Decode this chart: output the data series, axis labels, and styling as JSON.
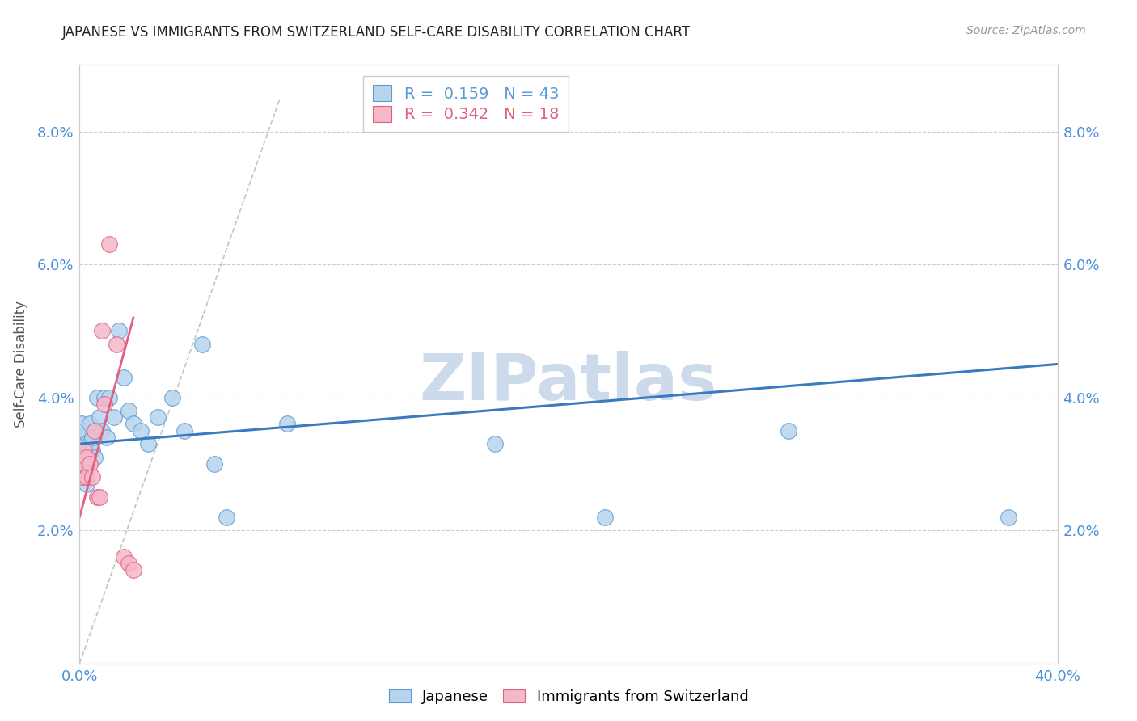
{
  "title": "JAPANESE VS IMMIGRANTS FROM SWITZERLAND SELF-CARE DISABILITY CORRELATION CHART",
  "source": "Source: ZipAtlas.com",
  "ylabel": "Self-Care Disability",
  "xlim": [
    0.0,
    0.4
  ],
  "ylim": [
    0.0,
    0.09
  ],
  "xticks": [
    0.0,
    0.1,
    0.2,
    0.3,
    0.4
  ],
  "xticklabels": [
    "0.0%",
    "",
    "",
    "",
    "40.0%"
  ],
  "yticks": [
    0.02,
    0.04,
    0.06,
    0.08
  ],
  "yticklabels": [
    "2.0%",
    "4.0%",
    "6.0%",
    "8.0%"
  ],
  "japanese_fill": "#b8d4ed",
  "japanese_edge": "#5b9bd5",
  "swiss_fill": "#f5b8c8",
  "swiss_edge": "#e06080",
  "japanese_line_color": "#3a7abf",
  "swiss_line_color": "#e06080",
  "R_japanese": 0.159,
  "N_japanese": 43,
  "R_swiss": 0.342,
  "N_swiss": 18,
  "japanese_x": [
    0.001,
    0.001,
    0.001,
    0.001,
    0.001,
    0.002,
    0.002,
    0.002,
    0.002,
    0.003,
    0.003,
    0.003,
    0.003,
    0.003,
    0.004,
    0.004,
    0.005,
    0.005,
    0.006,
    0.007,
    0.008,
    0.009,
    0.01,
    0.011,
    0.012,
    0.014,
    0.016,
    0.018,
    0.02,
    0.022,
    0.025,
    0.028,
    0.032,
    0.038,
    0.043,
    0.05,
    0.055,
    0.06,
    0.085,
    0.17,
    0.215,
    0.29,
    0.38
  ],
  "japanese_y": [
    0.028,
    0.03,
    0.032,
    0.034,
    0.036,
    0.03,
    0.031,
    0.033,
    0.035,
    0.027,
    0.028,
    0.03,
    0.031,
    0.033,
    0.033,
    0.036,
    0.032,
    0.034,
    0.031,
    0.04,
    0.037,
    0.035,
    0.04,
    0.034,
    0.04,
    0.037,
    0.05,
    0.043,
    0.038,
    0.036,
    0.035,
    0.033,
    0.037,
    0.04,
    0.035,
    0.048,
    0.03,
    0.022,
    0.036,
    0.033,
    0.022,
    0.035,
    0.022
  ],
  "swiss_x": [
    0.001,
    0.001,
    0.002,
    0.002,
    0.003,
    0.003,
    0.004,
    0.005,
    0.006,
    0.007,
    0.008,
    0.009,
    0.01,
    0.012,
    0.015,
    0.018,
    0.02,
    0.022
  ],
  "swiss_y": [
    0.028,
    0.03,
    0.03,
    0.032,
    0.028,
    0.031,
    0.03,
    0.028,
    0.035,
    0.025,
    0.025,
    0.05,
    0.039,
    0.063,
    0.048,
    0.016,
    0.015,
    0.014
  ],
  "background_color": "#ffffff",
  "grid_color": "#cccccc",
  "watermark_text": "ZIPatlas",
  "watermark_color": "#ccdaeb"
}
